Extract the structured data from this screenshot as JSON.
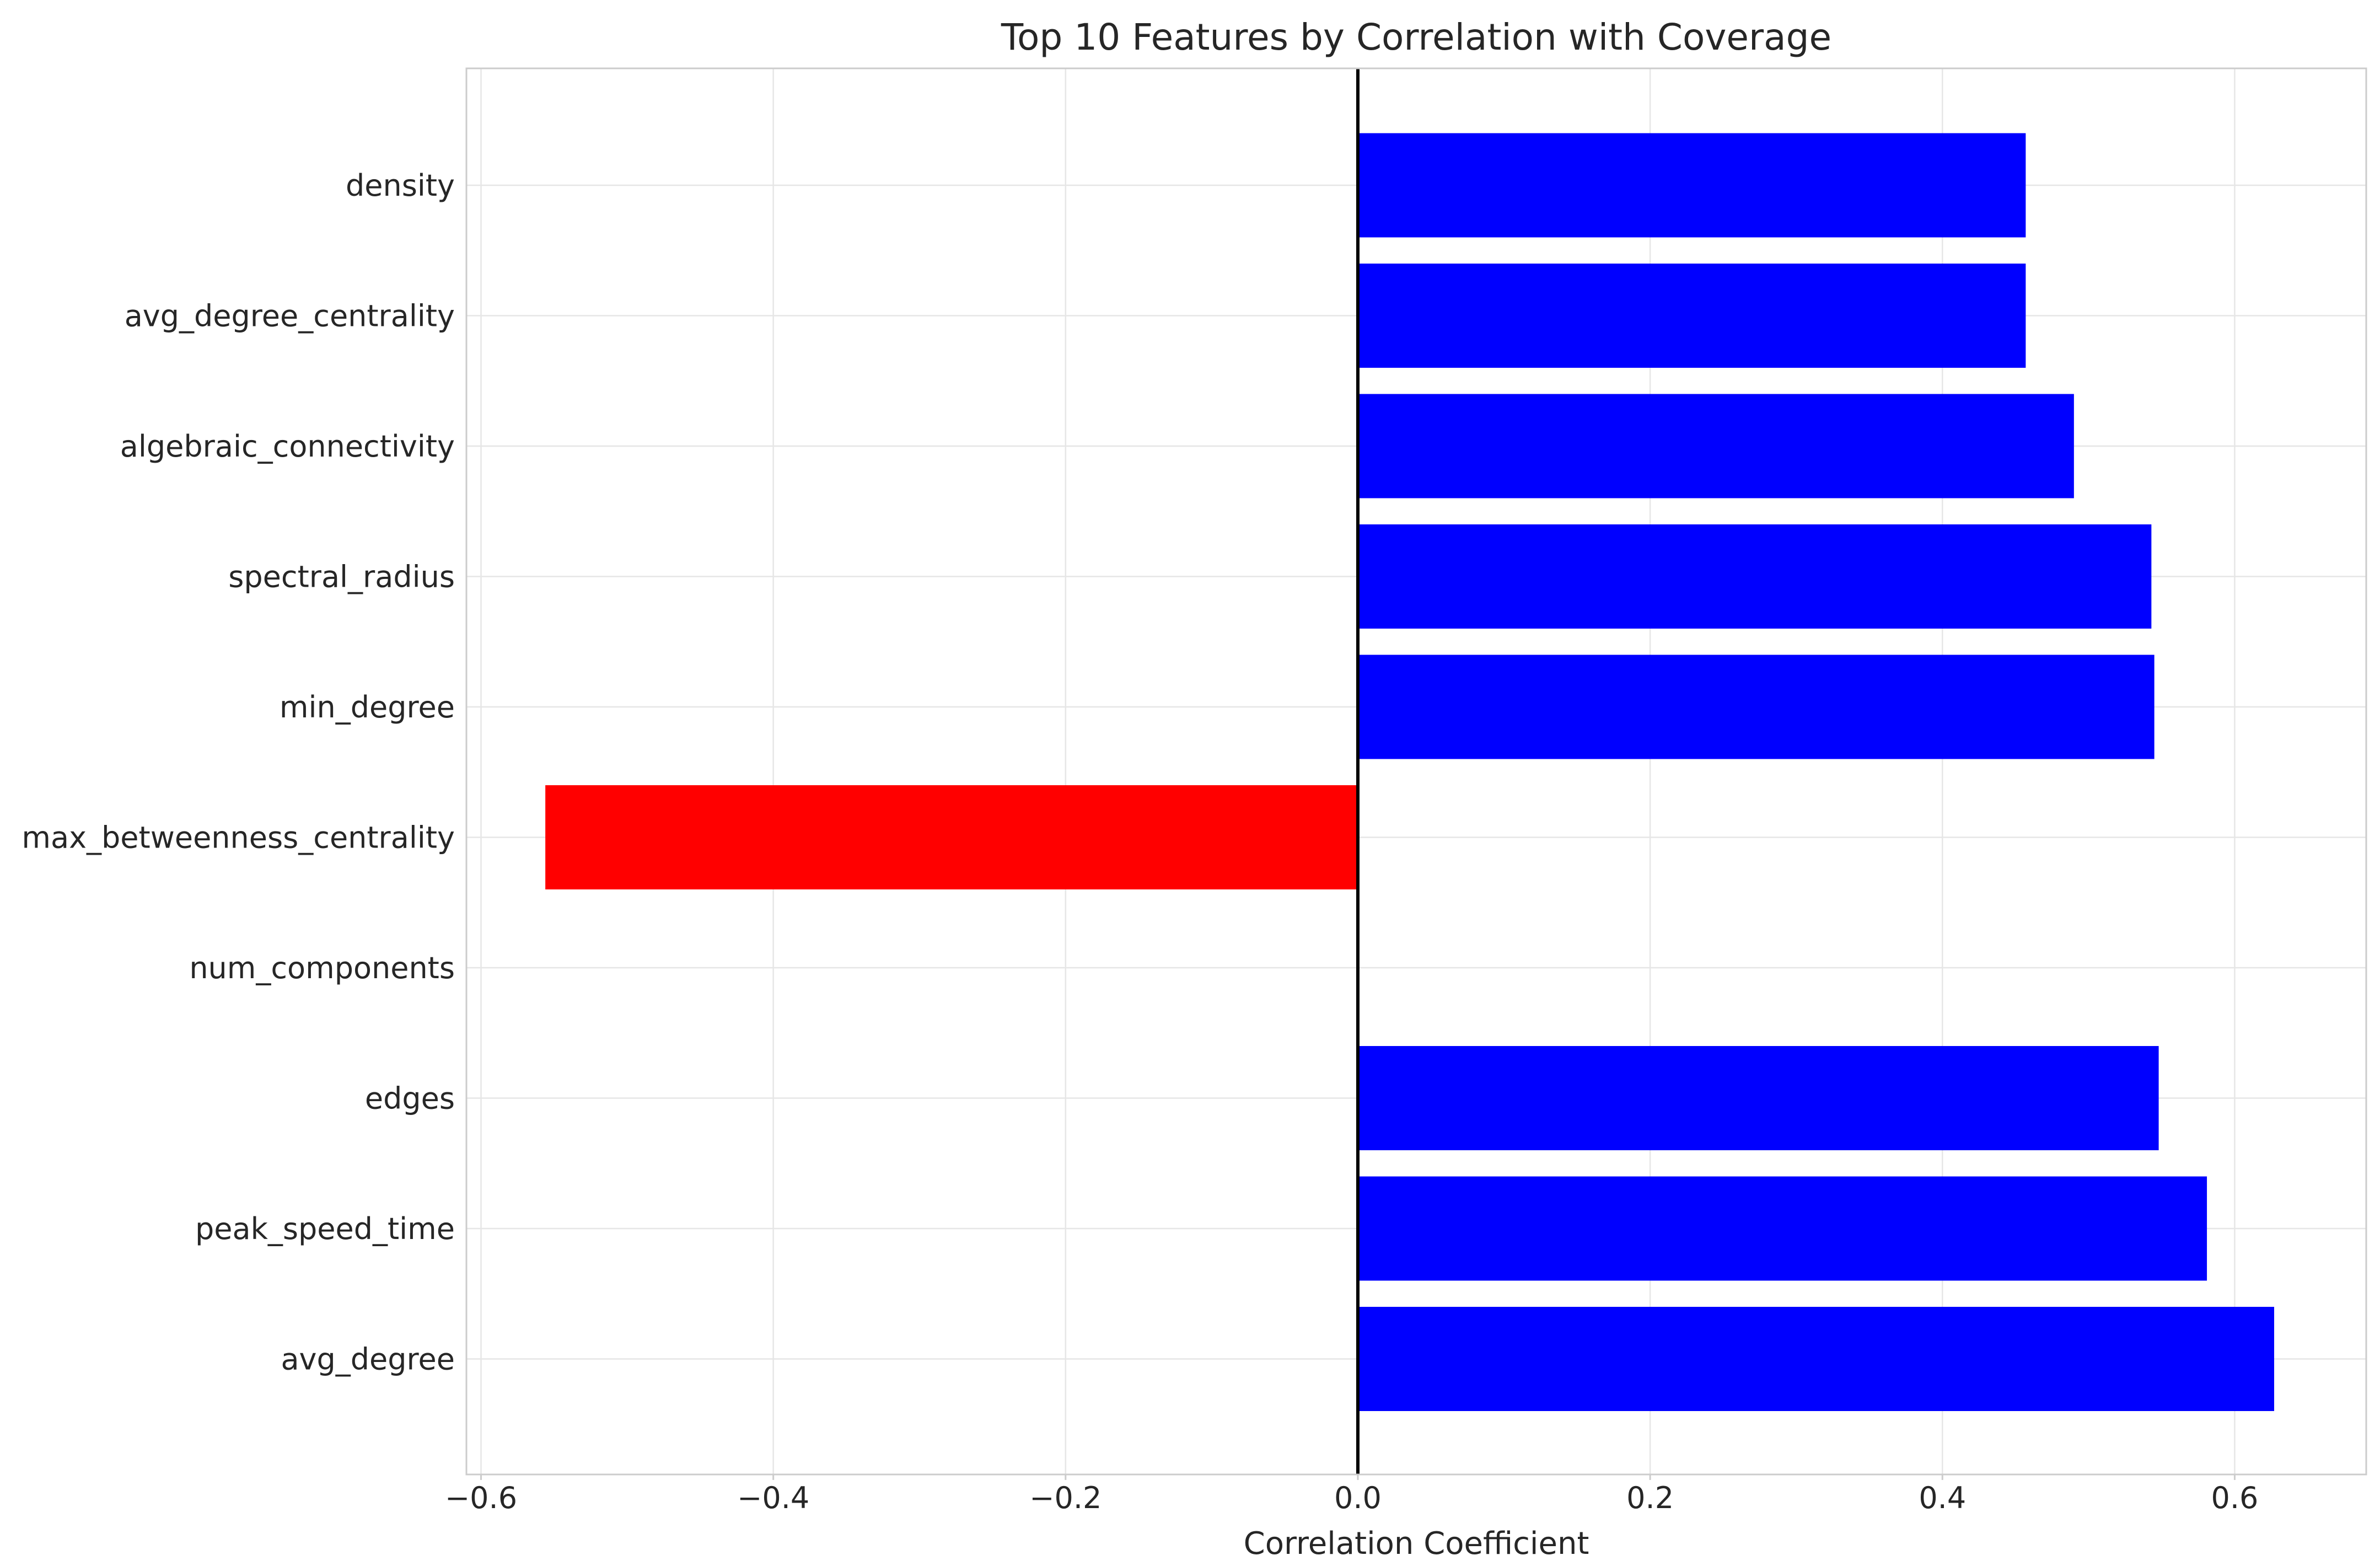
{
  "chart_data": {
    "type": "bar",
    "orientation": "horizontal",
    "title": "Top 10 Features by Correlation with Coverage",
    "xlabel": "Correlation Coefficient",
    "ylabel": "",
    "xlim": [
      -0.61,
      0.69
    ],
    "xticks": [
      -0.6,
      -0.4,
      -0.2,
      0.0,
      0.2,
      0.4,
      0.6
    ],
    "xtick_labels": [
      "−0.6",
      "−0.4",
      "−0.2",
      "0.0",
      "0.2",
      "0.4",
      "0.6"
    ],
    "categories": [
      "density",
      "avg_degree_centrality",
      "algebraic_connectivity",
      "spectral_radius",
      "min_degree",
      "max_betweenness_centrality",
      "num_components",
      "edges",
      "peak_speed_time",
      "avg_degree"
    ],
    "values": [
      0.457,
      0.457,
      0.49,
      0.543,
      0.545,
      -0.556,
      0.0,
      0.548,
      0.581,
      0.627
    ],
    "bar_colors": [
      "#0000ff",
      "#0000ff",
      "#0000ff",
      "#0000ff",
      "#0000ff",
      "#ff0000",
      "#0000ff",
      "#0000ff",
      "#0000ff",
      "#0000ff"
    ],
    "positive_color": "#0000ff",
    "negative_color": "#ff0000",
    "zero_line": true,
    "grid": true
  }
}
